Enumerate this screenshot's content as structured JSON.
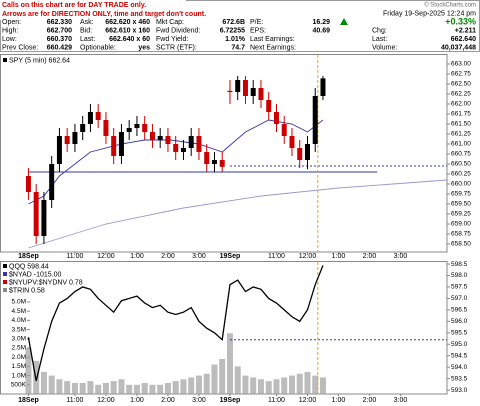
{
  "header": {
    "notice": [
      "Calls on this chart are for DAY TRADE only.",
      "Arrows are for DIRECTION ONLY, time and target don't count."
    ],
    "copyright": "© StockCharts.com",
    "rows": [
      [
        [
          "Open:",
          "662.330"
        ],
        [
          "Ask:",
          "662.620 x 460"
        ],
        [
          "Mkt Cap:",
          "672.6B"
        ],
        [
          "P/E:",
          "16.29"
        ]
      ],
      [
        [
          "High:",
          "662.700"
        ],
        [
          "Bid:",
          "662.610 x 160"
        ],
        [
          "Fwd Dividend:",
          "6.72255"
        ],
        [
          "EPS:",
          "40.69"
        ]
      ],
      [
        [
          "Low:",
          "660.370"
        ],
        [
          "Last:",
          "662.640 x 60"
        ],
        [
          "Fwd Yield:",
          "1.01%"
        ],
        [
          "Last Earnings:"
        ]
      ],
      [
        [
          "Prev Close:",
          "660.429"
        ],
        [
          "Optionable:",
          "yes"
        ],
        [
          "SCTR (ETF):",
          "74.7"
        ],
        [
          "Next Earnings:"
        ]
      ]
    ],
    "side": [
      [
        "Friday 19-Sep-2025 12:24 pm"
      ],
      [
        "+0.33%"
      ],
      [
        "Chg:",
        "+2.211"
      ],
      [
        "Last:",
        "662.640"
      ],
      [
        "Volume:",
        "40,037,448"
      ]
    ]
  },
  "chart_data": [
    {
      "type": "candlestick",
      "legend": "SPY (5 min) 662.64",
      "up_color": "#000000",
      "down_color": "#cc0000",
      "x": [
        0,
        3,
        6,
        9,
        12,
        15,
        18,
        21,
        24,
        27,
        30,
        33,
        36,
        39,
        42,
        45,
        48,
        51,
        54,
        57,
        60,
        63,
        66,
        69,
        72,
        75,
        78,
        81,
        84,
        87,
        90,
        93,
        96,
        99,
        102,
        105,
        108,
        111,
        114
      ],
      "open": [
        660.2,
        659.8,
        658.7,
        659.6,
        660.5,
        661.2,
        661.0,
        661.3,
        661.5,
        661.8,
        661.6,
        661.2,
        660.7,
        661.3,
        661.4,
        661.5,
        661.3,
        661.1,
        661.2,
        661.0,
        660.8,
        660.9,
        661.2,
        660.8,
        660.5,
        660.6,
        662.33,
        662.3,
        662.6,
        662.2,
        662.4,
        662.1,
        661.8,
        661.5,
        661.2,
        660.9,
        660.6,
        661.0,
        662.2
      ],
      "high": [
        660.4,
        660.0,
        659.8,
        660.7,
        661.4,
        661.4,
        661.5,
        661.7,
        662.0,
        662.0,
        661.8,
        661.4,
        661.5,
        661.6,
        661.7,
        661.7,
        661.5,
        661.4,
        661.4,
        661.2,
        661.1,
        661.4,
        661.4,
        661.0,
        660.8,
        660.8,
        662.6,
        662.7,
        662.7,
        662.6,
        662.6,
        662.3,
        662.0,
        661.7,
        661.4,
        661.1,
        661.2,
        662.4,
        662.7
      ],
      "low": [
        659.6,
        658.5,
        658.5,
        659.4,
        660.3,
        660.8,
        660.8,
        661.1,
        661.3,
        661.4,
        661.0,
        660.5,
        660.5,
        661.1,
        661.2,
        661.1,
        660.9,
        660.9,
        660.8,
        660.6,
        660.6,
        660.7,
        660.6,
        660.3,
        660.3,
        660.3,
        662.0,
        662.1,
        662.0,
        662.0,
        661.9,
        661.6,
        661.3,
        661.0,
        660.7,
        660.4,
        660.37,
        660.8,
        662.1
      ],
      "close": [
        659.8,
        658.7,
        659.6,
        660.5,
        661.2,
        661.0,
        661.3,
        661.5,
        661.8,
        661.6,
        661.2,
        660.7,
        661.3,
        661.4,
        661.5,
        661.3,
        661.1,
        661.2,
        661.0,
        660.8,
        660.9,
        661.2,
        660.8,
        660.5,
        660.6,
        660.43,
        662.3,
        662.6,
        662.2,
        662.4,
        662.1,
        661.8,
        661.5,
        661.2,
        660.9,
        660.6,
        661.0,
        662.2,
        662.64
      ],
      "series": [
        {
          "color": "#3333aa",
          "x": [
            0,
            6,
            12,
            24,
            36,
            45,
            55,
            66,
            75,
            84,
            93,
            102,
            108,
            114
          ],
          "values": [
            659.5,
            659.7,
            660.2,
            660.8,
            661.0,
            661.1,
            661.1,
            661.0,
            660.8,
            661.3,
            661.6,
            661.5,
            661.3,
            661.6
          ]
        },
        {
          "color": "#9999cc",
          "x": [
            0,
            30,
            60,
            90,
            120,
            162
          ],
          "values": [
            658.4,
            659.0,
            659.4,
            659.7,
            659.9,
            660.1
          ]
        }
      ],
      "hlines": [
        {
          "value": 660.3,
          "color": "#3333aa",
          "dashed": false
        },
        {
          "value": 660.45,
          "color": "#3333aa",
          "dashed": true
        }
      ],
      "vline": 112,
      "xlim": [
        -11,
        162
      ],
      "xticks": [
        {
          "value": 0,
          "label": "18Sep"
        },
        {
          "value": 18,
          "label": "11:00"
        },
        {
          "value": 30,
          "label": "12:00"
        },
        {
          "value": 42,
          "label": "1:00"
        },
        {
          "value": 54,
          "label": "2:00"
        },
        {
          "value": 66,
          "label": "3:00"
        },
        {
          "value": 78,
          "label": "19Sep"
        },
        {
          "value": 96,
          "label": "11:00"
        },
        {
          "value": 108,
          "label": "12:00"
        },
        {
          "value": 120,
          "label": "1:00"
        },
        {
          "value": 132,
          "label": "2:00"
        },
        {
          "value": 144,
          "label": "3:00"
        }
      ],
      "ylim": [
        658.3,
        663.225
      ],
      "yticks": [
        {
          "value": 658.5,
          "label": "658.50"
        },
        {
          "value": 658.75,
          "label": "658.75"
        },
        {
          "value": 659,
          "label": "659.00"
        },
        {
          "value": 659.25,
          "label": "659.25"
        },
        {
          "value": 659.5,
          "label": "659.50"
        },
        {
          "value": 659.75,
          "label": "659.75"
        },
        {
          "value": 660,
          "label": "660.00"
        },
        {
          "value": 660.25,
          "label": "660.25"
        },
        {
          "value": 660.5,
          "label": "660.50"
        },
        {
          "value": 660.75,
          "label": "660.75"
        },
        {
          "value": 661,
          "label": "661.00"
        },
        {
          "value": 661.25,
          "label": "661.25"
        },
        {
          "value": 661.5,
          "label": "661.50"
        },
        {
          "value": 661.75,
          "label": "661.75"
        },
        {
          "value": 662,
          "label": "662.00"
        },
        {
          "value": 662.25,
          "label": "662.25"
        },
        {
          "value": 662.5,
          "label": "662.50"
        },
        {
          "value": 662.75,
          "label": "662.75"
        },
        {
          "value": 663,
          "label": "663.00"
        }
      ]
    },
    {
      "type": "line",
      "legends": [
        {
          "text": "QQQ 598.44",
          "color": "#000000"
        },
        {
          "text": "$NYAD -1015.00",
          "color": "#3333aa"
        },
        {
          "text": "$NYUPV:$NYDNV 0.78",
          "color": "#cc0000"
        },
        {
          "text": "$TRIN 0.58",
          "color": "#888888"
        }
      ],
      "x": [
        0,
        3,
        6,
        9,
        12,
        15,
        18,
        21,
        24,
        27,
        30,
        33,
        36,
        39,
        42,
        45,
        48,
        51,
        54,
        57,
        60,
        63,
        66,
        69,
        72,
        75,
        78,
        81,
        84,
        87,
        90,
        93,
        96,
        99,
        102,
        105,
        108,
        111,
        114
      ],
      "series": [
        {
          "color": "#000000",
          "values": [
            595.3,
            593.4,
            594.8,
            596.0,
            596.8,
            597.0,
            597.3,
            597.5,
            597.4,
            597.0,
            596.7,
            596.4,
            596.9,
            597.0,
            597.1,
            596.8,
            596.6,
            596.7,
            596.4,
            596.3,
            596.4,
            596.6,
            596.0,
            595.7,
            595.5,
            595.2,
            597.6,
            597.8,
            597.3,
            597.5,
            597.4,
            597.0,
            596.8,
            596.5,
            596.2,
            596.0,
            596.5,
            597.6,
            598.44
          ]
        },
        {
          "color": "#a0a0a0",
          "axis": "y2",
          "values": [
            2500000,
            1800000,
            1200000,
            1000000,
            800000,
            700000,
            600000,
            600000,
            700000,
            500000,
            600000,
            700000,
            800000,
            500000,
            500000,
            600000,
            500000,
            500000,
            600000,
            700000,
            800000,
            900000,
            1000000,
            1100000,
            1600000,
            1900000,
            3300000,
            1500000,
            1000000,
            900000,
            800000,
            700000,
            800000,
            900000,
            1000000,
            1100000,
            1200000,
            1000000,
            900000
          ]
        }
      ],
      "hlines": [
        {
          "value": 595.2,
          "color": "#3333aa",
          "dashed": true
        }
      ],
      "vline": 112,
      "xlim": [
        -11,
        162
      ],
      "xticks": [
        {
          "value": 0,
          "label": "18Sep"
        },
        {
          "value": 18,
          "label": "11:00"
        },
        {
          "value": 30,
          "label": "12:00"
        },
        {
          "value": 42,
          "label": "1:00"
        },
        {
          "value": 54,
          "label": "2:00"
        },
        {
          "value": 66,
          "label": "3:00"
        },
        {
          "value": 78,
          "label": "19Sep"
        },
        {
          "value": 96,
          "label": "11:00"
        },
        {
          "value": 108,
          "label": "12:00"
        },
        {
          "value": 120,
          "label": "1:00"
        },
        {
          "value": 132,
          "label": "2:00"
        },
        {
          "value": 144,
          "label": "3:00"
        }
      ],
      "ylim": [
        592.83,
        598.59
      ],
      "yticks": [
        {
          "value": 593,
          "label": "593.0"
        },
        {
          "value": 593.5,
          "label": "593.5"
        },
        {
          "value": 594,
          "label": "594.0"
        },
        {
          "value": 594.5,
          "label": "594.5"
        },
        {
          "value": 595,
          "label": "595.0"
        },
        {
          "value": 595.5,
          "label": "595.5"
        },
        {
          "value": 596,
          "label": "596.0"
        },
        {
          "value": 596.5,
          "label": "596.5"
        },
        {
          "value": 597,
          "label": "597.0"
        },
        {
          "value": 597.5,
          "label": "597.5"
        },
        {
          "value": 598,
          "label": "598.0"
        },
        {
          "value": 598.5,
          "label": "598.5"
        }
      ],
      "y2lim": [
        0,
        7170000
      ],
      "y2ticks": [
        {
          "value": 500000,
          "label": "500K"
        },
        {
          "value": 1000000,
          "label": "1.0M"
        },
        {
          "value": 1500000,
          "label": "1.5M"
        },
        {
          "value": 2000000,
          "label": "2.0M"
        },
        {
          "value": 2500000,
          "label": "2.5M"
        },
        {
          "value": 3000000,
          "label": "3.0M"
        },
        {
          "value": 3500000,
          "label": "3.5M"
        },
        {
          "value": 4000000,
          "label": "4.0M"
        },
        {
          "value": 4500000,
          "label": "4.5M"
        },
        {
          "value": 5000000,
          "label": "5.0M"
        }
      ]
    }
  ]
}
